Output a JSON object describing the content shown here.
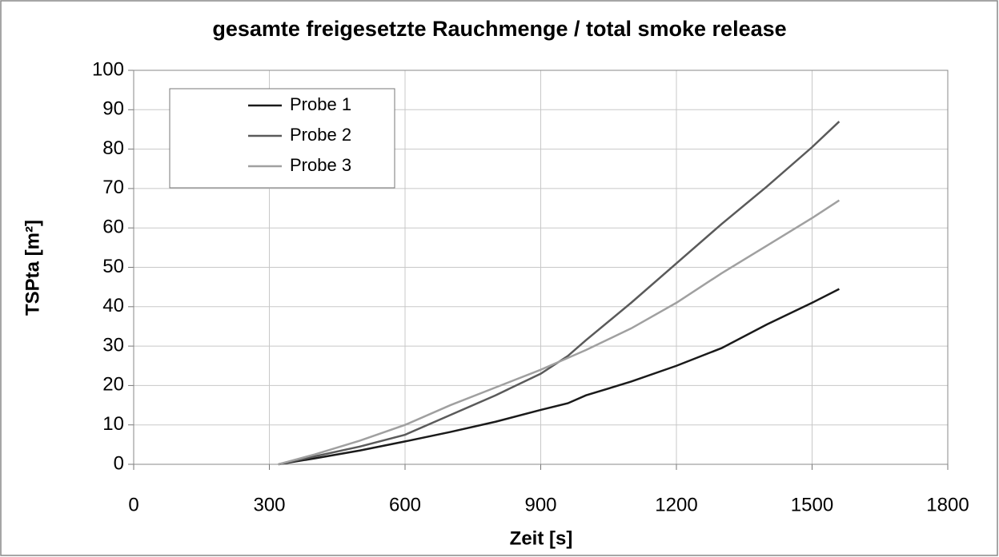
{
  "chart_data": {
    "type": "line",
    "title": "gesamte freigesetzte Rauchmenge / total smoke release",
    "x_label": "Zeit [s]",
    "y_label": "TSPta [m²]",
    "x": [
      320,
      400,
      500,
      600,
      700,
      800,
      900,
      960,
      1000,
      1100,
      1200,
      1300,
      1400,
      1500,
      1560
    ],
    "series": [
      {
        "name": "Probe 1",
        "color": "#1a1a1a",
        "values": [
          0,
          1.5,
          3.5,
          5.8,
          8.2,
          10.8,
          13.8,
          15.5,
          17.5,
          21,
          25,
          29.5,
          35.5,
          41,
          44.5
        ]
      },
      {
        "name": "Probe 2",
        "color": "#5a5a5a",
        "values": [
          0,
          2,
          4.5,
          7.5,
          12.5,
          17.5,
          23,
          27.5,
          31.5,
          41,
          51,
          61,
          70.5,
          80.5,
          87
        ]
      },
      {
        "name": "Probe 3",
        "color": "#a0a0a0",
        "values": [
          0,
          2.5,
          6,
          10,
          15,
          19.5,
          24,
          27,
          29,
          34.5,
          41,
          48.5,
          55.5,
          62.5,
          67
        ]
      }
    ],
    "xlim": [
      0,
      1800
    ],
    "xticks": [
      0,
      300,
      600,
      900,
      1200,
      1500,
      1800
    ],
    "ylim": [
      0,
      100
    ],
    "yticks": [
      0,
      10,
      20,
      30,
      40,
      50,
      60,
      70,
      80,
      90,
      100
    ],
    "grid": true,
    "legend": "upper left"
  }
}
